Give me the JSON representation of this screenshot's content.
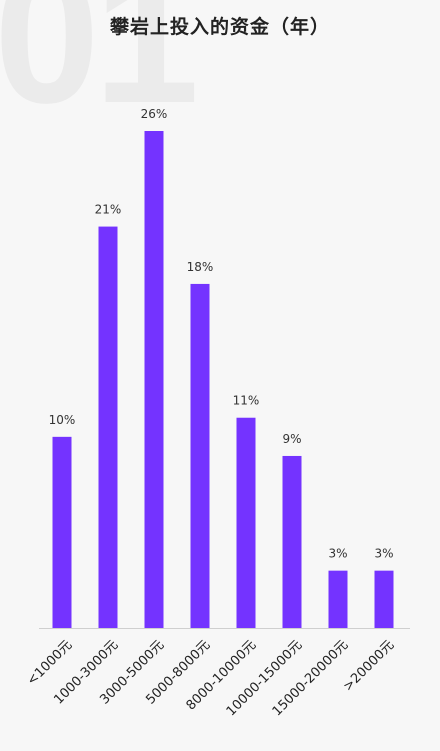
{
  "page": {
    "watermark": "01"
  },
  "chart_data": {
    "type": "bar",
    "title": "攀岩上投入的资金（年）",
    "categories": [
      "<1000元",
      "1000-3000元",
      "3000-5000元",
      "5000-8000元",
      "8000-10000元",
      "10000-15000元",
      "15000-20000元",
      ">20000元"
    ],
    "values": [
      10,
      21,
      26,
      18,
      11,
      9,
      3,
      3
    ],
    "value_labels": [
      "10%",
      "21%",
      "26%",
      "18%",
      "11%",
      "9%",
      "3%",
      "3%"
    ],
    "unit": "%",
    "ylim": [
      0,
      26
    ],
    "grid": false,
    "legend": "none",
    "bar_color": "#7433ff",
    "axis_color": "#cfcfcf"
  }
}
